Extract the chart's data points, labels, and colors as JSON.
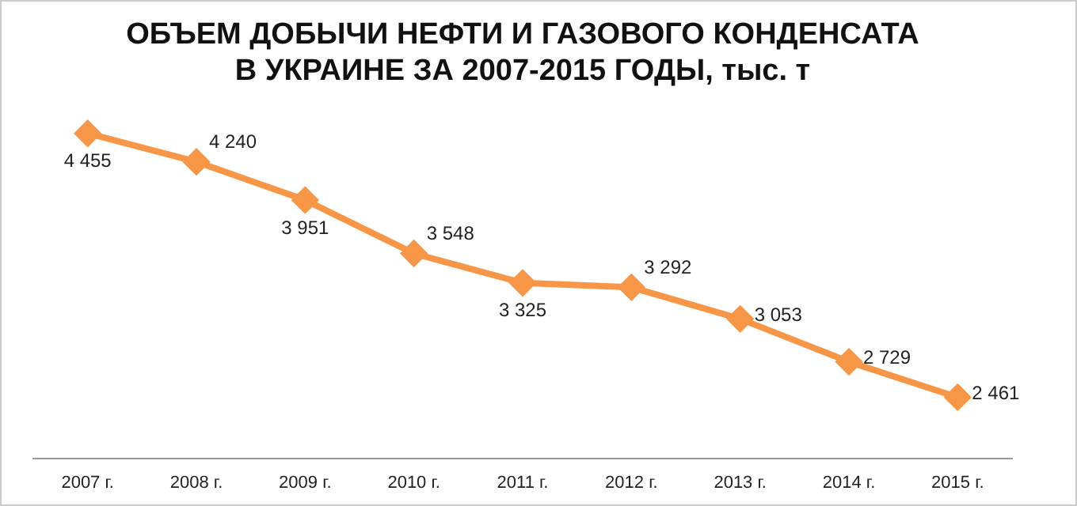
{
  "chart_data": {
    "type": "line",
    "title": "ОБЪЕМ ДОБЫЧИ НЕФТИ И ГАЗОВОГО КОНДЕНСАТА\nВ УКРАИНЕ ЗА 2007-2015 ГОДЫ, тыс. т",
    "categories": [
      "2007 г.",
      "2008 г.",
      "2009 г.",
      "2010 г.",
      "2011 г.",
      "2012 г.",
      "2013 г.",
      "2014 г.",
      "2015 г."
    ],
    "values": [
      4455,
      4240,
      3951,
      3548,
      3325,
      3292,
      3053,
      2729,
      2461
    ],
    "value_labels": [
      "4 455",
      "4 240",
      "3 951",
      "3 548",
      "3 325",
      "3 292",
      "3 053",
      "2 729",
      "2 461"
    ],
    "color": "#f79646",
    "marker": "diamond",
    "line_style": "solid",
    "grid": false,
    "legend": false,
    "tick_labels": "x"
  }
}
